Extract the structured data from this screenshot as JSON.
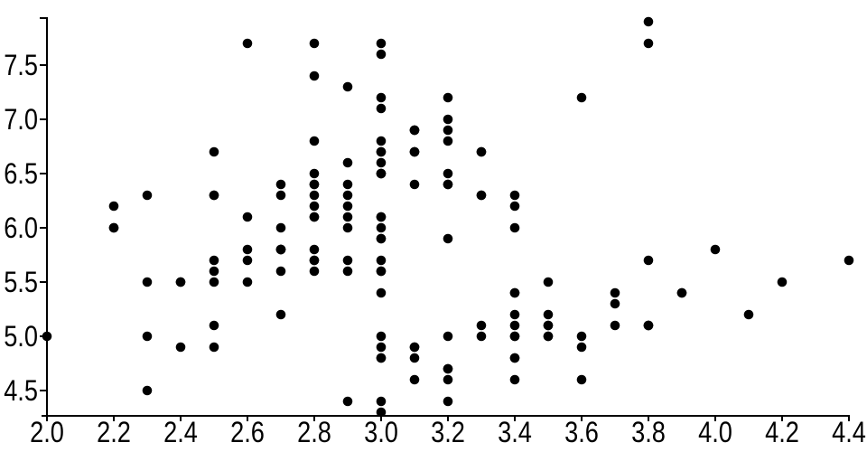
{
  "chart_data": {
    "type": "scatter",
    "title": "",
    "xlabel": "",
    "ylabel": "",
    "x_tick_labels": [
      "2.0",
      "2.2",
      "2.4",
      "2.6",
      "2.8",
      "3.0",
      "3.2",
      "3.4",
      "3.6",
      "3.8",
      "4.0",
      "4.2",
      "4.4"
    ],
    "y_tick_labels": [
      "4.5",
      "5.0",
      "5.5",
      "6.0",
      "6.5",
      "7.0",
      "7.5"
    ],
    "xlim": [
      1.98,
      4.43
    ],
    "ylim": [
      4.26,
      7.94
    ],
    "grid": false,
    "legend": "none",
    "axis_color": "#000000",
    "background": "#ffffff",
    "marker": {
      "shape": "circle",
      "color": "#000000",
      "radius_px": 5.3
    },
    "points": [
      [
        3.5,
        5.1
      ],
      [
        3.0,
        4.9
      ],
      [
        3.2,
        4.7
      ],
      [
        3.1,
        4.6
      ],
      [
        3.6,
        5.0
      ],
      [
        3.9,
        5.4
      ],
      [
        3.4,
        4.6
      ],
      [
        3.4,
        5.0
      ],
      [
        2.9,
        4.4
      ],
      [
        3.1,
        4.9
      ],
      [
        3.7,
        5.4
      ],
      [
        3.4,
        4.8
      ],
      [
        3.0,
        4.8
      ],
      [
        3.0,
        4.3
      ],
      [
        4.0,
        5.8
      ],
      [
        4.4,
        5.7
      ],
      [
        3.9,
        5.4
      ],
      [
        3.5,
        5.1
      ],
      [
        3.8,
        5.7
      ],
      [
        3.8,
        5.1
      ],
      [
        3.4,
        5.4
      ],
      [
        3.7,
        5.1
      ],
      [
        3.6,
        4.6
      ],
      [
        3.3,
        5.1
      ],
      [
        3.4,
        4.8
      ],
      [
        3.0,
        5.0
      ],
      [
        3.4,
        5.0
      ],
      [
        3.5,
        5.2
      ],
      [
        3.4,
        5.2
      ],
      [
        3.2,
        4.7
      ],
      [
        3.1,
        4.8
      ],
      [
        3.4,
        5.4
      ],
      [
        4.1,
        5.2
      ],
      [
        4.2,
        5.5
      ],
      [
        3.1,
        4.9
      ],
      [
        3.2,
        5.0
      ],
      [
        3.5,
        5.5
      ],
      [
        3.6,
        4.9
      ],
      [
        3.0,
        4.4
      ],
      [
        3.4,
        5.1
      ],
      [
        3.5,
        5.0
      ],
      [
        2.3,
        4.5
      ],
      [
        3.2,
        4.4
      ],
      [
        3.5,
        5.0
      ],
      [
        3.8,
        5.1
      ],
      [
        3.0,
        4.8
      ],
      [
        3.8,
        5.1
      ],
      [
        3.2,
        4.6
      ],
      [
        3.7,
        5.3
      ],
      [
        3.3,
        5.0
      ],
      [
        3.2,
        7.0
      ],
      [
        3.2,
        6.4
      ],
      [
        3.1,
        6.9
      ],
      [
        2.3,
        5.5
      ],
      [
        2.8,
        6.5
      ],
      [
        2.8,
        5.7
      ],
      [
        3.3,
        6.3
      ],
      [
        2.4,
        4.9
      ],
      [
        2.9,
        6.6
      ],
      [
        2.7,
        5.2
      ],
      [
        2.0,
        5.0
      ],
      [
        3.0,
        5.9
      ],
      [
        2.2,
        6.0
      ],
      [
        2.9,
        6.1
      ],
      [
        2.9,
        5.6
      ],
      [
        3.1,
        6.7
      ],
      [
        3.0,
        5.6
      ],
      [
        2.7,
        5.8
      ],
      [
        2.2,
        6.2
      ],
      [
        2.5,
        5.6
      ],
      [
        3.2,
        5.9
      ],
      [
        2.8,
        6.1
      ],
      [
        2.5,
        6.3
      ],
      [
        2.8,
        6.1
      ],
      [
        2.9,
        6.4
      ],
      [
        3.0,
        6.6
      ],
      [
        2.8,
        6.8
      ],
      [
        3.0,
        6.7
      ],
      [
        2.9,
        6.0
      ],
      [
        2.6,
        5.7
      ],
      [
        2.4,
        5.5
      ],
      [
        2.4,
        5.5
      ],
      [
        2.7,
        5.8
      ],
      [
        2.7,
        6.0
      ],
      [
        3.0,
        5.4
      ],
      [
        3.4,
        6.0
      ],
      [
        3.1,
        6.7
      ],
      [
        2.3,
        6.3
      ],
      [
        3.0,
        5.6
      ],
      [
        2.5,
        5.5
      ],
      [
        2.6,
        5.5
      ],
      [
        3.0,
        6.1
      ],
      [
        2.6,
        5.8
      ],
      [
        2.3,
        5.0
      ],
      [
        2.7,
        5.6
      ],
      [
        3.0,
        5.7
      ],
      [
        2.9,
        5.7
      ],
      [
        2.9,
        6.2
      ],
      [
        2.5,
        5.1
      ],
      [
        2.8,
        5.7
      ],
      [
        3.3,
        6.3
      ],
      [
        2.7,
        5.8
      ],
      [
        3.0,
        7.1
      ],
      [
        2.9,
        6.3
      ],
      [
        3.0,
        6.5
      ],
      [
        3.0,
        7.6
      ],
      [
        2.5,
        4.9
      ],
      [
        2.9,
        7.3
      ],
      [
        2.5,
        6.7
      ],
      [
        3.6,
        7.2
      ],
      [
        3.2,
        6.5
      ],
      [
        2.7,
        6.4
      ],
      [
        3.0,
        6.8
      ],
      [
        2.5,
        5.7
      ],
      [
        2.8,
        5.8
      ],
      [
        3.2,
        6.4
      ],
      [
        3.0,
        6.5
      ],
      [
        3.8,
        7.7
      ],
      [
        2.6,
        7.7
      ],
      [
        2.2,
        6.0
      ],
      [
        3.2,
        6.9
      ],
      [
        2.8,
        5.6
      ],
      [
        2.8,
        7.7
      ],
      [
        2.7,
        6.3
      ],
      [
        3.3,
        6.7
      ],
      [
        3.2,
        7.2
      ],
      [
        2.8,
        6.2
      ],
      [
        3.0,
        6.1
      ],
      [
        2.8,
        6.4
      ],
      [
        3.0,
        7.2
      ],
      [
        2.8,
        7.4
      ],
      [
        3.8,
        7.9
      ],
      [
        2.8,
        6.4
      ],
      [
        2.8,
        6.3
      ],
      [
        2.6,
        6.1
      ],
      [
        3.0,
        7.7
      ],
      [
        3.4,
        6.3
      ],
      [
        3.1,
        6.4
      ],
      [
        3.0,
        6.0
      ],
      [
        3.1,
        6.9
      ],
      [
        3.1,
        6.7
      ],
      [
        3.1,
        6.9
      ],
      [
        2.7,
        5.8
      ],
      [
        3.2,
        6.8
      ],
      [
        3.3,
        6.7
      ],
      [
        3.0,
        6.7
      ],
      [
        2.5,
        6.3
      ],
      [
        3.0,
        6.5
      ],
      [
        3.4,
        6.2
      ],
      [
        3.0,
        5.9
      ]
    ]
  }
}
